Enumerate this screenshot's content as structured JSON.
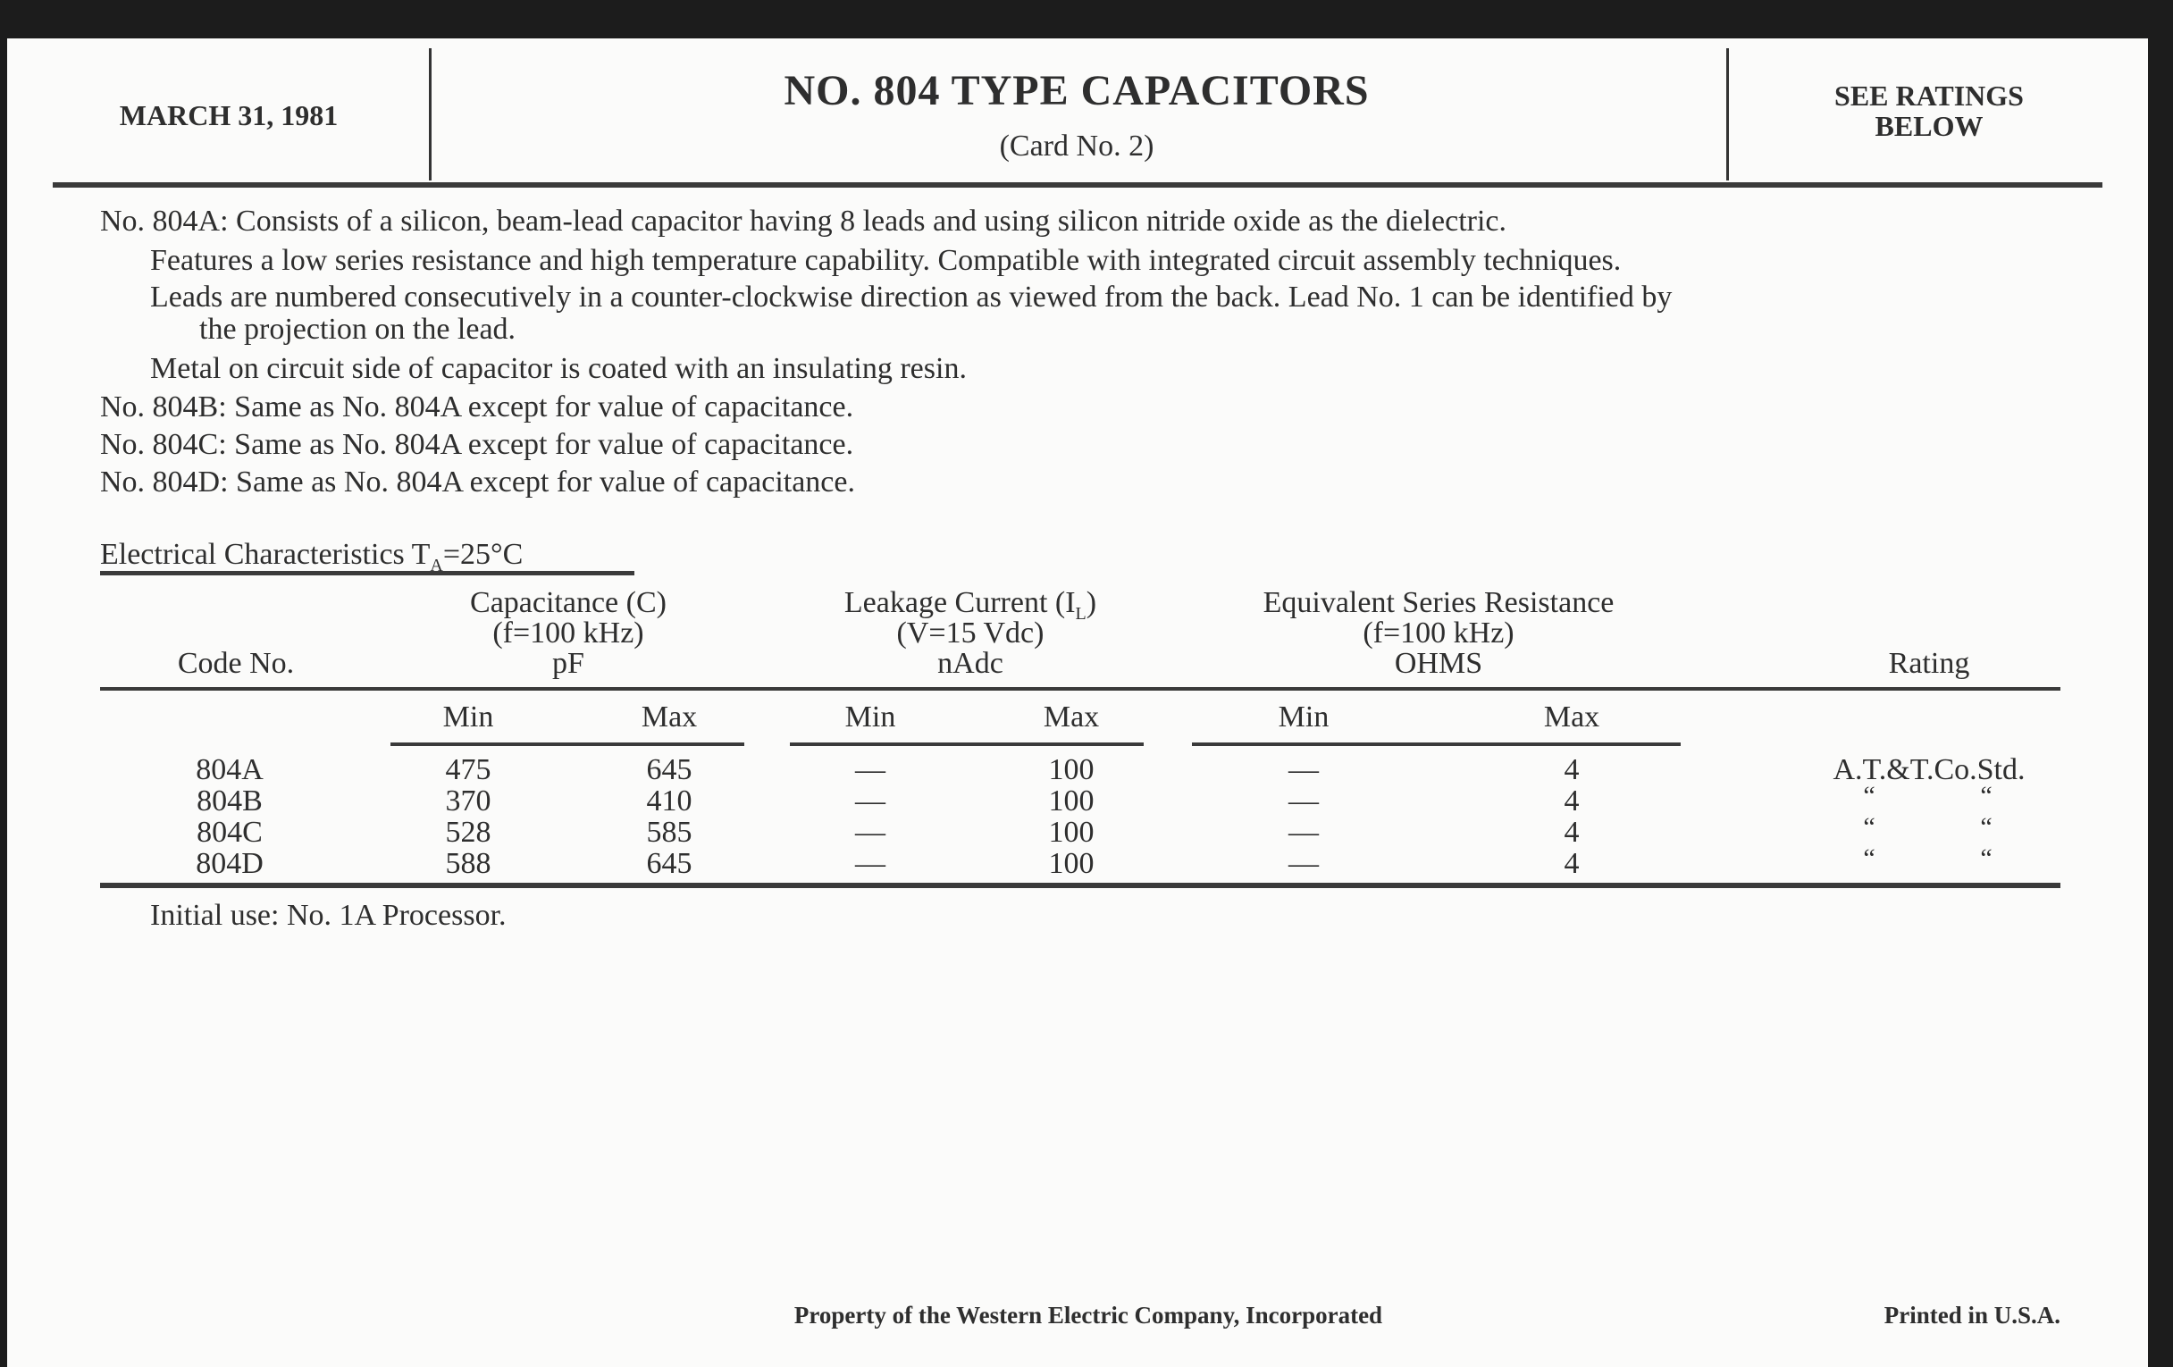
{
  "header": {
    "date": "MARCH 31, 1981",
    "title": "NO. 804 TYPE CAPACITORS",
    "subtitle": "(Card No. 2)",
    "ratings_line1": "SEE RATINGS",
    "ratings_line2": "BELOW"
  },
  "description": {
    "lines": [
      "No. 804A: Consists of a silicon, beam-lead capacitor having 8 leads and using silicon nitride oxide as the dielectric.",
      "Features a low series resistance and high temperature capability. Compatible with integrated circuit assembly techniques.",
      "Leads are numbered consecutively in a counter-clockwise direction as viewed from the back. Lead No. 1 can be identified by",
      "the projection on the lead.",
      "Metal on circuit side of capacitor is coated with an insulating resin.",
      "No. 804B: Same as No. 804A except for value of capacitance.",
      "No. 804C: Same as No. 804A except for value of capacitance.",
      "No. 804D: Same as No. 804A except for value of capacitance."
    ]
  },
  "table": {
    "section_title": "Electrical Characteristics T",
    "section_title_sub": "A",
    "section_title_end": "=25°C",
    "code_header": "Code No.",
    "capacitance": {
      "l1": "Capacitance (C)",
      "l2": "(f=100 kHz)",
      "l3": "pF"
    },
    "leakage": {
      "l1": "Leakage Current (I",
      "l1_sub": "L",
      "l1_end": ")",
      "l2": "(V=15 Vdc)",
      "l3": "nAdc"
    },
    "esr": {
      "l1": "Equivalent Series Resistance",
      "l2": "(f=100 kHz)",
      "l3": "OHMS"
    },
    "rating_header": "Rating",
    "min_label": "Min",
    "max_label": "Max",
    "rows": [
      {
        "code": "804A",
        "cap_min": "475",
        "cap_max": "645",
        "leak_min": "—",
        "leak_max": "100",
        "esr_min": "—",
        "esr_max": "4",
        "rating": "A.T.&T.Co.Std."
      },
      {
        "code": "804B",
        "cap_min": "370",
        "cap_max": "410",
        "leak_min": "—",
        "leak_max": "100",
        "esr_min": "—",
        "esr_max": "4",
        "rating_l": "“",
        "rating_r": "“"
      },
      {
        "code": "804C",
        "cap_min": "528",
        "cap_max": "585",
        "leak_min": "—",
        "leak_max": "100",
        "esr_min": "—",
        "esr_max": "4",
        "rating_l": "“",
        "rating_r": "“"
      },
      {
        "code": "804D",
        "cap_min": "588",
        "cap_max": "645",
        "leak_min": "—",
        "leak_max": "100",
        "esr_min": "—",
        "esr_max": "4",
        "rating_l": "“",
        "rating_r": "“"
      }
    ],
    "note": "Initial use: No. 1A Processor."
  },
  "footer": {
    "property": "Property of the Western Electric Company, Incorporated",
    "printed": "Printed in U.S.A."
  }
}
